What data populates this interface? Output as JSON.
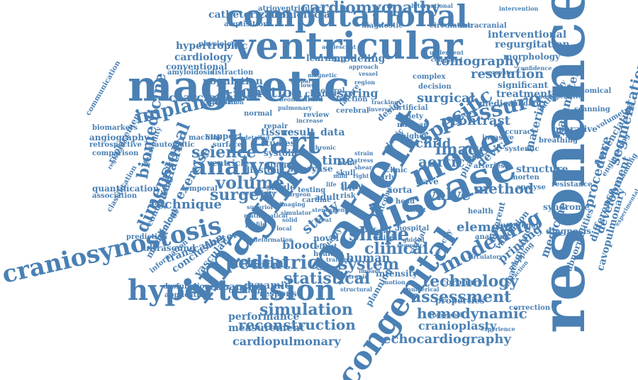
{
  "cloud": {
    "color": "#4a80b4",
    "words": [
      {
        "text": "resonance"
      },
      {
        "text": "magnetic"
      },
      {
        "text": "ventricular"
      },
      {
        "text": "computational"
      },
      {
        "text": "imaging"
      },
      {
        "text": "patient"
      },
      {
        "text": "disease"
      },
      {
        "text": "congenital"
      },
      {
        "text": "hypertension"
      },
      {
        "text": "craniosynostosis"
      },
      {
        "text": "heart"
      },
      {
        "text": "model"
      },
      {
        "text": "cardiomyopathy"
      },
      {
        "text": "analysis"
      },
      {
        "text": "pressure"
      },
      {
        "text": "specific"
      },
      {
        "text": "implantation"
      },
      {
        "text": "shape"
      },
      {
        "text": "modelling"
      },
      {
        "text": "pediatric"
      },
      {
        "text": "hemodynamic"
      },
      {
        "text": "assessment"
      },
      {
        "text": "simulation"
      },
      {
        "text": "reconstruction"
      },
      {
        "text": "echocardiography"
      },
      {
        "text": "cardiopulmonary"
      },
      {
        "text": "technology"
      },
      {
        "text": "statistical"
      },
      {
        "text": "clinical"
      },
      {
        "text": "system"
      },
      {
        "text": "surgery"
      },
      {
        "text": "science"
      },
      {
        "text": "volume"
      },
      {
        "text": "dimensional"
      },
      {
        "text": "biomedicine"
      },
      {
        "text": "technique"
      },
      {
        "text": "tomography"
      },
      {
        "text": "resolution"
      },
      {
        "text": "image"
      },
      {
        "text": "aortic"
      },
      {
        "text": "child"
      },
      {
        "text": "coarctation"
      },
      {
        "text": "function"
      },
      {
        "text": "catheterization"
      },
      {
        "text": "craniofacial"
      },
      {
        "text": "hypertrophic"
      },
      {
        "text": "valve"
      },
      {
        "text": "method"
      },
      {
        "text": "arterial"
      },
      {
        "text": "segmentation"
      },
      {
        "text": "procedure"
      },
      {
        "text": "development"
      },
      {
        "text": "surgical"
      },
      {
        "text": "contrast"
      },
      {
        "text": "cranioplasty"
      },
      {
        "text": "study"
      },
      {
        "text": "element"
      },
      {
        "text": "interventional"
      },
      {
        "text": "regurgitation"
      },
      {
        "text": "parameter"
      },
      {
        "text": "difference"
      },
      {
        "text": "cavopulmonary"
      },
      {
        "text": "abnormalities"
      },
      {
        "text": "nomenclature"
      },
      {
        "text": "medicine"
      },
      {
        "text": "printing"
      },
      {
        "text": "transcatheter"
      },
      {
        "text": "performance"
      },
      {
        "text": "measurement"
      },
      {
        "text": "exercise"
      },
      {
        "text": "paediatric"
      },
      {
        "text": "population"
      },
      {
        "text": "cardiology"
      },
      {
        "text": "modeling"
      },
      {
        "text": "learning"
      },
      {
        "text": "conventional"
      },
      {
        "text": "amyloidosis"
      },
      {
        "text": "ultrasound"
      },
      {
        "text": "quantification"
      },
      {
        "text": "prediction"
      },
      {
        "text": "blood"
      },
      {
        "text": "human"
      },
      {
        "text": "expansion"
      },
      {
        "text": "vascular"
      },
      {
        "text": "conclusion"
      },
      {
        "text": "tissue"
      },
      {
        "text": "result"
      },
      {
        "text": "data"
      },
      {
        "text": "time"
      },
      {
        "text": "spring"
      },
      {
        "text": "device"
      },
      {
        "text": "structure"
      },
      {
        "text": "material"
      },
      {
        "text": "treatment"
      },
      {
        "text": "significant"
      },
      {
        "text": "morphology"
      },
      {
        "text": "medical"
      },
      {
        "text": "standard"
      },
      {
        "text": "operative"
      },
      {
        "text": "diagnosis"
      },
      {
        "text": "syndrome"
      },
      {
        "text": "validation"
      },
      {
        "text": "background"
      },
      {
        "text": "coronary"
      },
      {
        "text": "properties"
      },
      {
        "text": "intensity"
      },
      {
        "text": "planning"
      },
      {
        "text": "dynamic"
      },
      {
        "text": "response"
      },
      {
        "text": "tetralogy"
      },
      {
        "text": "group"
      },
      {
        "text": "flow"
      },
      {
        "text": "aorta"
      },
      {
        "text": "artery"
      },
      {
        "text": "case"
      },
      {
        "text": "diastolic"
      },
      {
        "text": "single"
      },
      {
        "text": "ventricle"
      },
      {
        "text": "continuous"
      },
      {
        "text": "mechanical"
      },
      {
        "text": "radiology"
      },
      {
        "text": "replacement"
      },
      {
        "text": "angiography"
      },
      {
        "text": "biomarkers"
      },
      {
        "text": "comparison"
      },
      {
        "text": "association"
      },
      {
        "text": "dysfunction"
      },
      {
        "text": "application"
      },
      {
        "text": "information"
      },
      {
        "text": "condition"
      },
      {
        "text": "systolic"
      },
      {
        "text": "studies"
      },
      {
        "text": "support"
      },
      {
        "text": "automatic"
      },
      {
        "text": "machine"
      },
      {
        "text": "surface"
      },
      {
        "text": "distraction"
      },
      {
        "text": "change"
      },
      {
        "text": "fraction"
      },
      {
        "text": "review"
      },
      {
        "text": "repair"
      },
      {
        "text": "physiology"
      },
      {
        "text": "acquisition"
      },
      {
        "text": "atrioventricular"
      },
      {
        "text": "international"
      },
      {
        "text": "diagnostic"
      },
      {
        "text": "circulation"
      },
      {
        "text": "intracranial"
      },
      {
        "text": "intervention"
      },
      {
        "text": "complex"
      },
      {
        "text": "decision"
      },
      {
        "text": "underwent"
      },
      {
        "text": "computed"
      },
      {
        "text": "computer"
      },
      {
        "text": "anatomical"
      },
      {
        "text": "scanning"
      },
      {
        "text": "understanding"
      },
      {
        "text": "experimental"
      },
      {
        "text": "engineering"
      },
      {
        "text": "resistance"
      },
      {
        "text": "correction"
      },
      {
        "text": "framework"
      },
      {
        "text": "experience"
      },
      {
        "text": "different"
      },
      {
        "text": "arteries"
      },
      {
        "text": "invasive"
      },
      {
        "text": "accuracy"
      },
      {
        "text": "phase"
      },
      {
        "text": "wave"
      },
      {
        "text": "adult"
      },
      {
        "text": "novel"
      },
      {
        "text": "mitral"
      },
      {
        "text": "fetal"
      },
      {
        "text": "health"
      },
      {
        "text": "functional"
      },
      {
        "text": "virtual"
      },
      {
        "text": "effect"
      },
      {
        "text": "healthy"
      },
      {
        "text": "control"
      },
      {
        "text": "cerebral"
      },
      {
        "text": "synthetic"
      },
      {
        "text": "skull"
      },
      {
        "text": "temporal"
      },
      {
        "text": "potential"
      },
      {
        "text": "quality"
      },
      {
        "text": "clinic"
      },
      {
        "text": "elastic"
      },
      {
        "text": "systemic"
      },
      {
        "text": "breathing"
      },
      {
        "text": "confidence"
      },
      {
        "text": "morten"
      },
      {
        "text": "analyse"
      },
      {
        "text": "pathology"
      },
      {
        "text": "anatomy"
      },
      {
        "text": "interaction"
      },
      {
        "text": "circulatory"
      },
      {
        "text": "mapping"
      },
      {
        "text": "volumetric"
      },
      {
        "text": "postoperative"
      },
      {
        "text": "adolescent"
      },
      {
        "text": "artificial"
      },
      {
        "text": "society"
      },
      {
        "text": "nuclear"
      },
      {
        "text": "higher"
      },
      {
        "text": "detailed"
      },
      {
        "text": "communication"
      },
      {
        "text": "feasibility"
      },
      {
        "text": "registration"
      },
      {
        "text": "retrospective"
      },
      {
        "text": "classification"
      },
      {
        "text": "fibrillation"
      },
      {
        "text": "normal"
      },
      {
        "text": "deformation"
      },
      {
        "text": "outcome"
      },
      {
        "text": "training"
      },
      {
        "text": "structural"
      },
      {
        "text": "electronic"
      },
      {
        "text": "hospital"
      },
      {
        "text": "thoracic"
      },
      {
        "text": "genetic"
      },
      {
        "text": "head"
      },
      {
        "text": "left"
      },
      {
        "text": "risk"
      },
      {
        "text": "bone"
      },
      {
        "text": "testing"
      },
      {
        "text": "cardiac"
      },
      {
        "text": "numerical"
      },
      {
        "text": "imaging"
      },
      {
        "text": "simulator"
      },
      {
        "text": "mild"
      },
      {
        "text": "guided"
      },
      {
        "text": "early"
      },
      {
        "text": "chronic"
      },
      {
        "text": "fluid"
      },
      {
        "text": "tracking"
      },
      {
        "text": "sensitivity"
      },
      {
        "text": "velocity"
      },
      {
        "text": "inverse"
      },
      {
        "text": "sequence"
      },
      {
        "text": "design"
      },
      {
        "text": "failure"
      },
      {
        "text": "superior"
      },
      {
        "text": "mathematical"
      },
      {
        "text": "profile"
      },
      {
        "text": "solid"
      },
      {
        "text": "great"
      },
      {
        "text": "stenosis"
      },
      {
        "text": "life"
      },
      {
        "text": "surgeon"
      },
      {
        "text": "magnetic"
      },
      {
        "text": "global"
      },
      {
        "text": "lower"
      },
      {
        "text": "increase"
      },
      {
        "text": "region"
      },
      {
        "text": "vessel"
      },
      {
        "text": "approach"
      },
      {
        "text": "sagittal"
      },
      {
        "text": "impact"
      },
      {
        "text": "local"
      },
      {
        "text": "right"
      },
      {
        "text": "shear"
      },
      {
        "text": "stress"
      },
      {
        "text": "strain"
      },
      {
        "text": "pulmonary"
      },
      {
        "text": "neonatal"
      },
      {
        "text": "infant"
      },
      {
        "text": "motion"
      }
    ]
  }
}
